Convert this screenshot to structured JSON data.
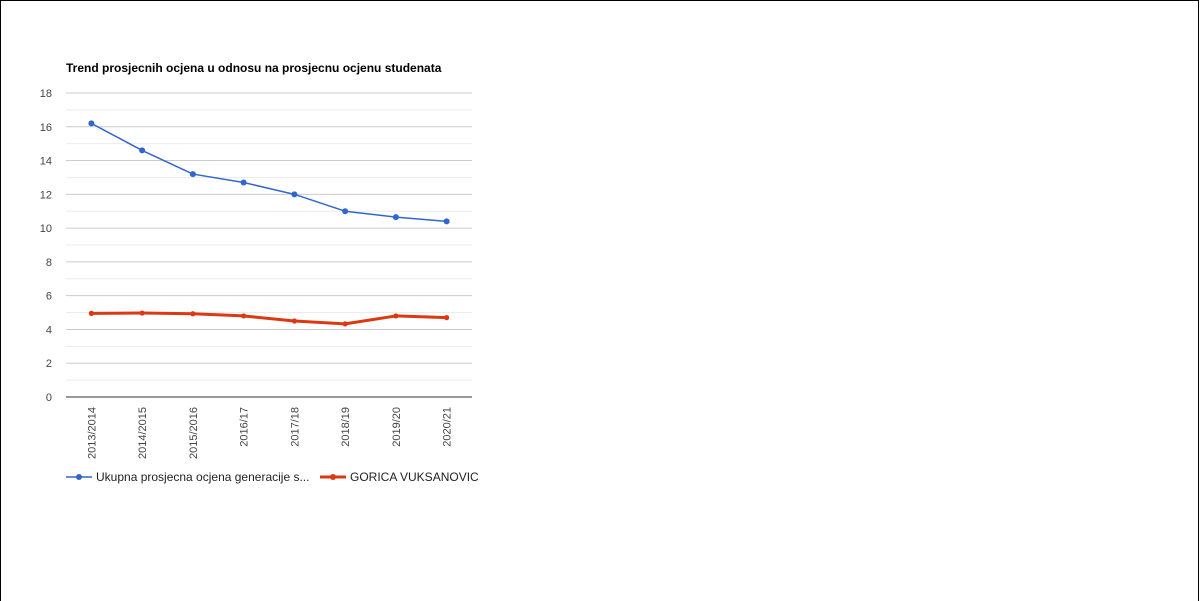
{
  "chart_data": {
    "type": "line",
    "title": "Trend prosjecnih ocjena u odnosu na prosjecnu ocjenu studenata",
    "categories": [
      "2013/2014",
      "2014/2015",
      "2015/2016",
      "2016/17",
      "2017/18",
      "2018/19",
      "2019/20",
      "2020/21"
    ],
    "ylim": [
      0,
      18
    ],
    "yticks": [
      0,
      2,
      4,
      6,
      8,
      10,
      12,
      14,
      16,
      18
    ],
    "grid": true,
    "legend_position": "bottom",
    "series": [
      {
        "name": "Ukupna prosjecna ocjena generacije s...",
        "color": "#3366cc",
        "values": [
          16.2,
          14.6,
          13.2,
          12.7,
          12.0,
          11.0,
          10.65,
          10.4
        ]
      },
      {
        "name": "GORICA VUKSANOVIC",
        "color": "#dc3912",
        "values": [
          4.95,
          4.97,
          4.93,
          4.8,
          4.5,
          4.33,
          4.8,
          4.7
        ]
      }
    ]
  }
}
